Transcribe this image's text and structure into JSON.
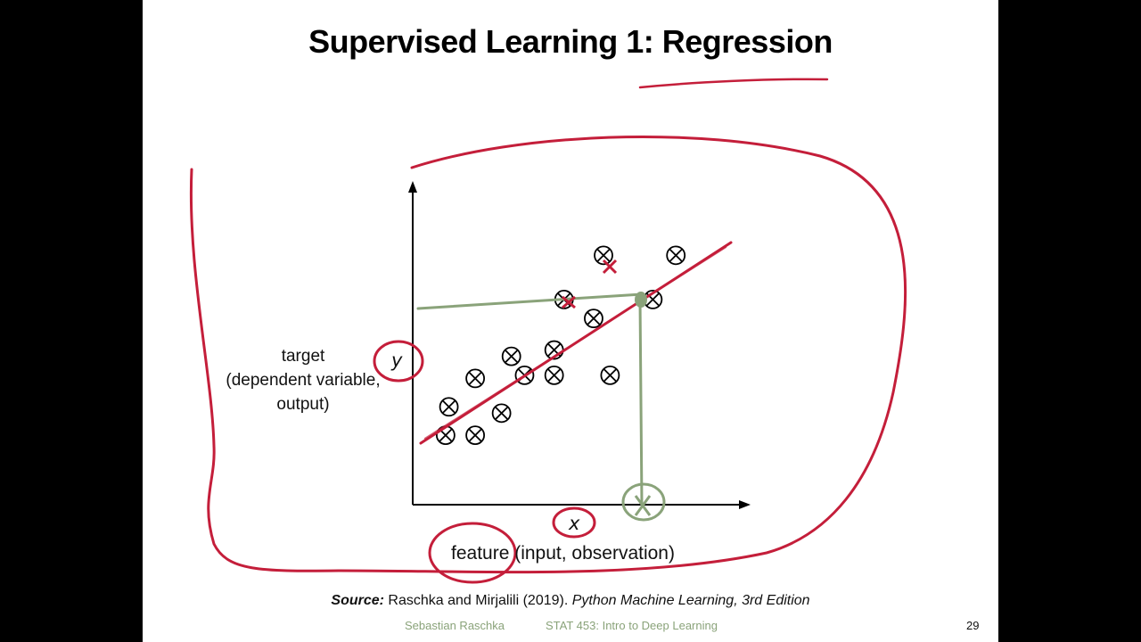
{
  "slide": {
    "title": "Supervised Learning 1: Regression",
    "y_axis_label": {
      "line1": "target",
      "line2": "(dependent variable,",
      "line3": "output)"
    },
    "y_symbol": "y",
    "x_symbol": "x",
    "x_axis_label": "feature (input, observation)",
    "source": {
      "prefix": "Source:",
      "authors": " Raschka and Mirjalili (2019). ",
      "book": "Python Machine Learning, 3rd Edition"
    },
    "footer": {
      "author": "Sebastian Raschka",
      "course": "STAT 453: Intro to Deep Learning",
      "page": "29"
    },
    "colors": {
      "annotation_red": "#c41e3a",
      "annotation_green": "#8aa37a"
    }
  },
  "chart_data": {
    "type": "scatter",
    "marker": "circled-x",
    "points": [
      {
        "x": 0.1,
        "y": 0.22
      },
      {
        "x": 0.11,
        "y": 0.31
      },
      {
        "x": 0.19,
        "y": 0.22
      },
      {
        "x": 0.19,
        "y": 0.4
      },
      {
        "x": 0.27,
        "y": 0.29
      },
      {
        "x": 0.3,
        "y": 0.47
      },
      {
        "x": 0.34,
        "y": 0.41
      },
      {
        "x": 0.43,
        "y": 0.49
      },
      {
        "x": 0.43,
        "y": 0.41
      },
      {
        "x": 0.46,
        "y": 0.65
      },
      {
        "x": 0.55,
        "y": 0.59
      },
      {
        "x": 0.6,
        "y": 0.41
      },
      {
        "x": 0.58,
        "y": 0.79
      },
      {
        "x": 0.73,
        "y": 0.65
      },
      {
        "x": 0.8,
        "y": 0.79
      }
    ],
    "xlim": [
      0,
      1
    ],
    "ylim": [
      0,
      1
    ]
  }
}
